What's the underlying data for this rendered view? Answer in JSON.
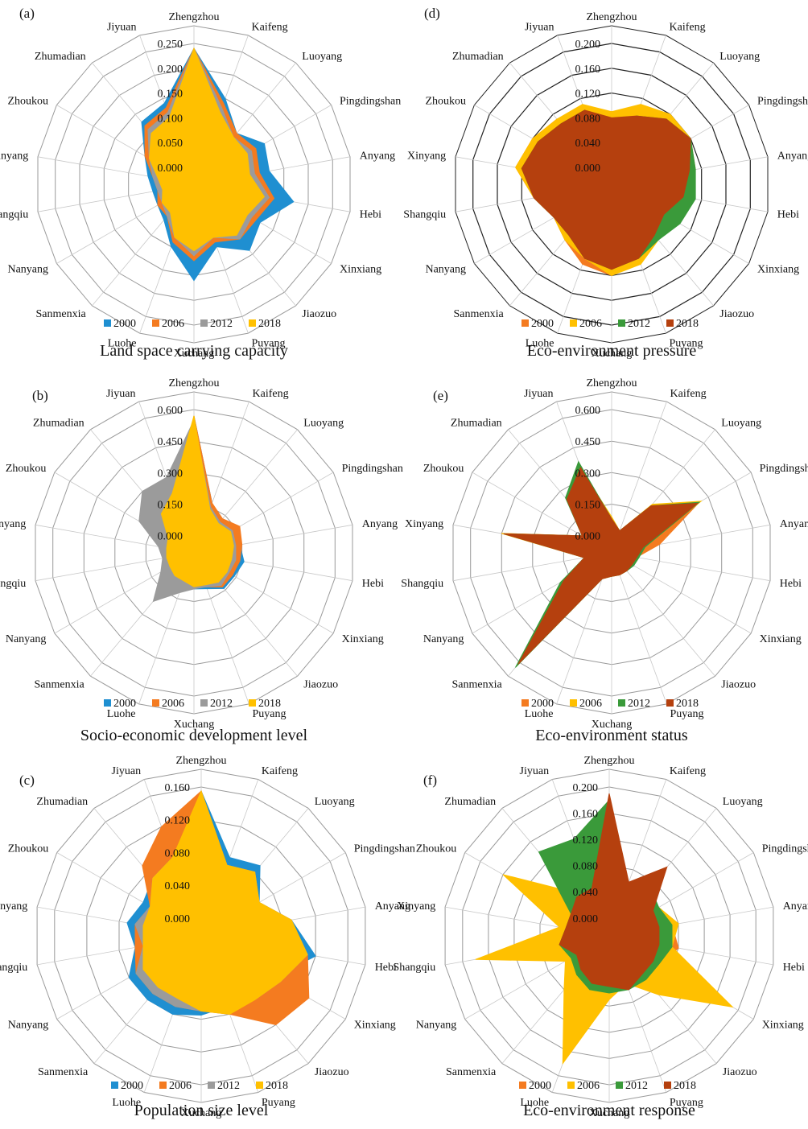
{
  "colors": {
    "2000": "#1f8fd1",
    "2006": "#f47b20",
    "2012": "#9b9b9b",
    "2012_green": "#3a9a3a",
    "2018": "#ffc000",
    "2018_dark": "#b5400e"
  },
  "cities": [
    "Zhengzhou",
    "Kaifeng",
    "Luoyang",
    "Pingdingshan",
    "Anyang",
    "Hebi",
    "Xinxiang",
    "Jiaozuo",
    "Puyang",
    "Xuchang",
    "Luohe",
    "Sanmenxia",
    "Nanyang",
    "Shangqiu",
    "Xinyang",
    "Zhoukou",
    "Zhumadian",
    "Jiyuan"
  ],
  "chart_data": [
    {
      "panel": "(a)",
      "type": "radar",
      "title": "Land space carrying capacity",
      "ticks": [
        "0.000",
        "0.050",
        "0.100",
        "0.150",
        "0.200",
        "0.250"
      ],
      "rlim": [
        0,
        0.25
      ],
      "series": [
        {
          "name": "2000",
          "color": "#1f8fd1",
          "values": [
            0.24,
            0.15,
            0.1,
            0.13,
            0.12,
            0.17,
            0.12,
            0.14,
            0.1,
            0.16,
            0.1,
            0.06,
            0.05,
            0.05,
            0.06,
            0.08,
            0.13,
            0.14
          ]
        },
        {
          "name": "2006",
          "color": "#f47b20",
          "values": [
            0.24,
            0.14,
            0.1,
            0.11,
            0.1,
            0.13,
            0.11,
            0.11,
            0.09,
            0.12,
            0.09,
            0.05,
            0.05,
            0.04,
            0.05,
            0.08,
            0.12,
            0.13
          ]
        },
        {
          "name": "2012",
          "color": "#9b9b9b",
          "values": [
            0.24,
            0.13,
            0.09,
            0.1,
            0.09,
            0.12,
            0.1,
            0.11,
            0.08,
            0.11,
            0.08,
            0.05,
            0.04,
            0.04,
            0.05,
            0.07,
            0.11,
            0.12
          ]
        },
        {
          "name": "2018",
          "color": "#ffc000",
          "values": [
            0.24,
            0.12,
            0.09,
            0.09,
            0.08,
            0.11,
            0.09,
            0.1,
            0.08,
            0.1,
            0.08,
            0.04,
            0.04,
            0.03,
            0.04,
            0.07,
            0.1,
            0.11
          ]
        }
      ]
    },
    {
      "panel": "(b)",
      "type": "radar",
      "title": "Socio-economic development level",
      "ticks": [
        "0.000",
        "0.150",
        "0.300",
        "0.450",
        "0.600"
      ],
      "rlim": [
        0,
        0.6
      ],
      "series": [
        {
          "name": "2000",
          "color": "#1f8fd1",
          "values": [
            0.57,
            0.17,
            0.12,
            0.14,
            0.14,
            0.16,
            0.14,
            0.14,
            0.1,
            0.09,
            0.06,
            0.05,
            0.05,
            0.05,
            0.04,
            0.05,
            0.06,
            0.08
          ]
        },
        {
          "name": "2006",
          "color": "#f47b20",
          "values": [
            0.57,
            0.17,
            0.13,
            0.17,
            0.15,
            0.14,
            0.13,
            0.13,
            0.09,
            0.08,
            0.06,
            0.05,
            0.05,
            0.05,
            0.04,
            0.05,
            0.06,
            0.08
          ]
        },
        {
          "name": "2012",
          "color": "#9b9b9b",
          "values": [
            0.55,
            0.15,
            0.11,
            0.13,
            0.12,
            0.12,
            0.11,
            0.12,
            0.09,
            0.09,
            0.12,
            0.22,
            0.1,
            0.07,
            0.09,
            0.22,
            0.3,
            0.3
          ]
        },
        {
          "name": "2018",
          "color": "#ffc000",
          "values": [
            0.57,
            0.14,
            0.1,
            0.12,
            0.11,
            0.1,
            0.1,
            0.1,
            0.08,
            0.08,
            0.06,
            0.06,
            0.05,
            0.05,
            0.05,
            0.06,
            0.16,
            0.22
          ]
        }
      ]
    },
    {
      "panel": "(c)",
      "type": "radar",
      "title": "Population size level",
      "ticks": [
        "0.000",
        "0.040",
        "0.080",
        "0.120",
        "0.160"
      ],
      "rlim": [
        0,
        0.16
      ],
      "series": [
        {
          "name": "2000",
          "color": "#1f8fd1",
          "values": [
            0.155,
            0.08,
            0.09,
            0.06,
            0.09,
            0.12,
            0.08,
            0.06,
            0.07,
            0.075,
            0.08,
            0.08,
            0.08,
            0.06,
            0.07,
            0.06,
            0.07,
            0.07
          ]
        },
        {
          "name": "2006",
          "color": "#f47b20",
          "values": [
            0.155,
            0.07,
            0.08,
            0.06,
            0.09,
            0.11,
            0.13,
            0.12,
            0.08,
            0.07,
            0.07,
            0.07,
            0.07,
            0.06,
            0.06,
            0.05,
            0.09,
            0.12
          ]
        },
        {
          "name": "2012",
          "color": "#9b9b9b",
          "values": [
            0.15,
            0.07,
            0.08,
            0.06,
            0.09,
            0.11,
            0.09,
            0.08,
            0.07,
            0.07,
            0.07,
            0.07,
            0.07,
            0.05,
            0.06,
            0.05,
            0.07,
            0.08
          ]
        },
        {
          "name": "2018",
          "color": "#ffc000",
          "values": [
            0.155,
            0.07,
            0.08,
            0.06,
            0.09,
            0.11,
            0.09,
            0.08,
            0.08,
            0.07,
            0.06,
            0.06,
            0.06,
            0.05,
            0.05,
            0.05,
            0.07,
            0.08
          ]
        }
      ]
    },
    {
      "panel": "(d)",
      "type": "radar",
      "title": "Eco-environment pressure",
      "ticks": [
        "0.000",
        "0.040",
        "0.080",
        "0.120",
        "0.160",
        "0.200"
      ],
      "rlim": [
        0,
        0.2
      ],
      "series": [
        {
          "name": "2000",
          "color": "#f47b20",
          "values": [
            0.09,
            0.09,
            0.11,
            0.12,
            0.11,
            0.1,
            0.08,
            0.08,
            0.1,
            0.12,
            0.11,
            0.09,
            0.08,
            0.1,
            0.13,
            0.12,
            0.11,
            0.1
          ]
        },
        {
          "name": "2006",
          "color": "#ffc000",
          "values": [
            0.09,
            0.11,
            0.12,
            0.12,
            0.1,
            0.1,
            0.08,
            0.09,
            0.11,
            0.12,
            0.1,
            0.09,
            0.08,
            0.1,
            0.13,
            0.12,
            0.11,
            0.11
          ]
        },
        {
          "name": "2012",
          "color": "#3a9a3a",
          "values": [
            0.05,
            0.09,
            0.11,
            0.12,
            0.11,
            0.11,
            0.1,
            0.09,
            0.1,
            0.11,
            0.1,
            0.08,
            0.08,
            0.1,
            0.12,
            0.11,
            0.1,
            0.1
          ]
        },
        {
          "name": "2018",
          "color": "#b5400e",
          "values": [
            0.08,
            0.09,
            0.11,
            0.12,
            0.1,
            0.09,
            0.07,
            0.08,
            0.1,
            0.11,
            0.1,
            0.08,
            0.08,
            0.1,
            0.12,
            0.11,
            0.1,
            0.1
          ]
        }
      ]
    },
    {
      "panel": "(e)",
      "type": "radar",
      "title": "Eco-environment status",
      "ticks": [
        "0.000",
        "0.150",
        "0.300",
        "0.450",
        "0.600"
      ],
      "rlim": [
        0,
        0.6
      ],
      "series": [
        {
          "name": "2000",
          "color": "#f47b20",
          "values": [
            0.08,
            0.03,
            0.2,
            0.4,
            0.15,
            0.04,
            0.03,
            0.03,
            0.03,
            0.03,
            0.05,
            0.62,
            0.15,
            0.05,
            0.45,
            0.08,
            0.25,
            0.34
          ]
        },
        {
          "name": "2006",
          "color": "#ffc000",
          "values": [
            0.09,
            0.03,
            0.22,
            0.41,
            0.07,
            0.04,
            0.03,
            0.03,
            0.03,
            0.03,
            0.05,
            0.62,
            0.17,
            0.05,
            0.45,
            0.08,
            0.25,
            0.34
          ]
        },
        {
          "name": "2012",
          "color": "#3a9a3a",
          "values": [
            0.08,
            0.03,
            0.21,
            0.4,
            0.08,
            0.05,
            0.04,
            0.03,
            0.03,
            0.03,
            0.05,
            0.63,
            0.2,
            0.05,
            0.44,
            0.08,
            0.26,
            0.38
          ]
        },
        {
          "name": "2018",
          "color": "#b5400e",
          "values": [
            0.08,
            0.03,
            0.21,
            0.39,
            0.07,
            0.04,
            0.03,
            0.03,
            0.03,
            0.03,
            0.05,
            0.61,
            0.18,
            0.05,
            0.44,
            0.08,
            0.25,
            0.35
          ]
        }
      ]
    },
    {
      "panel": "(f)",
      "type": "radar",
      "title": "Eco-environment response",
      "ticks": [
        "0.000",
        "0.040",
        "0.080",
        "0.120",
        "0.160",
        "0.200"
      ],
      "rlim": [
        0,
        0.2
      ],
      "series": [
        {
          "name": "2000",
          "color": "#f47b20",
          "values": [
            0.02,
            0.03,
            0.03,
            0.06,
            0.07,
            0.08,
            0.06,
            0.05,
            0.04,
            0.04,
            0.05,
            0.04,
            0.03,
            0.17,
            0.05,
            0.08,
            0.06,
            0.04
          ]
        },
        {
          "name": "2006",
          "color": "#ffc000",
          "values": [
            0.02,
            0.03,
            0.03,
            0.06,
            0.08,
            0.07,
            0.19,
            0.09,
            0.05,
            0.07,
            0.18,
            0.08,
            0.05,
            0.18,
            0.05,
            0.16,
            0.06,
            0.04
          ]
        },
        {
          "name": "2012",
          "color": "#3a9a3a",
          "values": [
            0.18,
            0.05,
            0.07,
            0.06,
            0.07,
            0.07,
            0.06,
            0.06,
            0.06,
            0.06,
            0.06,
            0.05,
            0.04,
            0.05,
            0.04,
            0.04,
            0.14,
            0.13
          ]
        },
        {
          "name": "2018",
          "color": "#b5400e",
          "values": [
            0.19,
            0.06,
            0.11,
            0.05,
            0.05,
            0.05,
            0.05,
            0.05,
            0.06,
            0.05,
            0.05,
            0.04,
            0.03,
            0.05,
            0.04,
            0.04,
            0.05,
            0.05
          ]
        }
      ]
    }
  ]
}
